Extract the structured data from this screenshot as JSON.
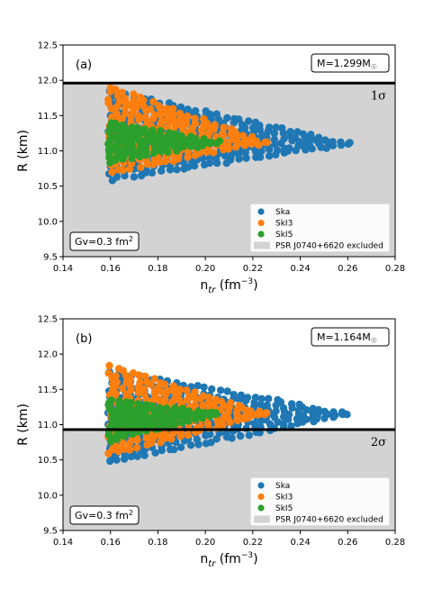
{
  "chart_data": [
    {
      "type": "scatter",
      "panel_label": "(a)",
      "xlabel": "n_tr (fm^-3)",
      "ylabel": "R (km)",
      "xlim": [
        0.14,
        0.28
      ],
      "ylim": [
        9.5,
        12.5
      ],
      "x_ticks": [
        "0.14",
        "0.16",
        "0.18",
        "0.20",
        "0.22",
        "0.24",
        "0.26",
        "0.28"
      ],
      "y_ticks": [
        "9.5",
        "10.0",
        "10.5",
        "11.0",
        "11.5",
        "12.0",
        "12.5"
      ],
      "mass_label": "M=1.299M",
      "gv_label": "Gv=0.3 fm",
      "gv_unit_exp": "2",
      "sigma_label": "1σ",
      "exclusion_line_R": 11.96,
      "excluded_region": "below line",
      "legend_position": "lower-right",
      "legend": [
        "Ska",
        "SkI3",
        "SkI5",
        "PSR J0740+6620 excluded"
      ],
      "series": [
        {
          "name": "Ska",
          "color": "#1f77b4",
          "x_range": [
            0.16,
            0.26
          ],
          "R_min_at_start": 10.6,
          "R_max_at_start": 11.85,
          "R_end": 11.1
        },
        {
          "name": "SkI3",
          "color": "#ff7f0e",
          "x_range": [
            0.16,
            0.225
          ],
          "R_min_at_start": 10.7,
          "R_max_at_start": 11.9,
          "R_end": 11.12
        },
        {
          "name": "SkI5",
          "color": "#2ca02c",
          "x_range": [
            0.16,
            0.205
          ],
          "R_min_at_start": 10.85,
          "R_max_at_start": 11.4,
          "R_end": 11.12
        }
      ]
    },
    {
      "type": "scatter",
      "panel_label": "(b)",
      "xlabel": "n_tr (fm^-3)",
      "ylabel": "R (km)",
      "xlim": [
        0.14,
        0.28
      ],
      "ylim": [
        9.5,
        12.5
      ],
      "x_ticks": [
        "0.14",
        "0.16",
        "0.18",
        "0.20",
        "0.22",
        "0.24",
        "0.26",
        "0.28"
      ],
      "y_ticks": [
        "9.5",
        "10.0",
        "10.5",
        "11.0",
        "11.5",
        "12.0",
        "12.5"
      ],
      "mass_label": "M=1.164M",
      "gv_label": "Gv=0.3 fm",
      "gv_unit_exp": "2",
      "sigma_label": "2σ",
      "exclusion_line_R": 10.93,
      "excluded_region": "below line",
      "legend_position": "lower-right",
      "legend": [
        "Ska",
        "SkI3",
        "SkI5",
        "PSR J0740+6620 excluded"
      ],
      "series": [
        {
          "name": "Ska",
          "color": "#1f77b4",
          "x_range": [
            0.16,
            0.26
          ],
          "R_min_at_start": 10.48,
          "R_max_at_start": 11.75,
          "R_end": 11.15
        },
        {
          "name": "SkI3",
          "color": "#ff7f0e",
          "x_range": [
            0.16,
            0.225
          ],
          "R_min_at_start": 10.58,
          "R_max_at_start": 11.82,
          "R_end": 11.15
        },
        {
          "name": "SkI5",
          "color": "#2ca02c",
          "x_range": [
            0.16,
            0.205
          ],
          "R_min_at_start": 10.78,
          "R_max_at_start": 11.35,
          "R_end": 11.15
        }
      ]
    }
  ],
  "colors": {
    "excluded_region": "#d3d3d3",
    "line": "#000000"
  }
}
